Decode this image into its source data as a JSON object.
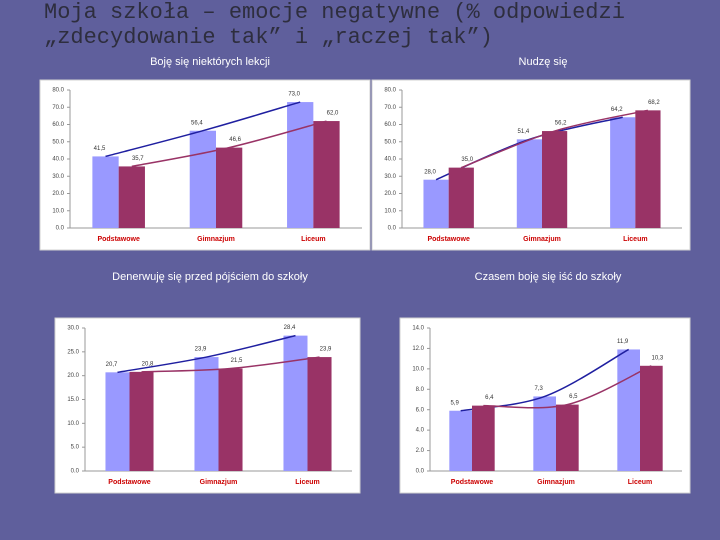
{
  "title": "Moja szkoła – emocje negatywne (% odpowiedzi „zdecydowanie tak” i „raczej tak”)",
  "chart_data": [
    {
      "type": "bar",
      "title": "Boję się niektórych lekcji",
      "categories": [
        "Podstawowe",
        "Gimnazjum",
        "Liceum"
      ],
      "series": [
        {
          "color": "#9999ff",
          "line_color": "#1f1fa0",
          "values": [
            41.5,
            56.4,
            73.0
          ],
          "value_labels": [
            "41,5",
            "56,4",
            "73,0"
          ]
        },
        {
          "color": "#993366",
          "line_color": "#993366",
          "values": [
            35.7,
            46.6,
            62.0
          ],
          "value_labels": [
            "35,7",
            "46,6",
            "62,0"
          ]
        }
      ],
      "ylim": [
        0,
        80
      ],
      "yticks": [
        {
          "value": 0,
          "label": "0.0"
        },
        {
          "value": 10,
          "label": "10.0"
        },
        {
          "value": 20,
          "label": "20.0"
        },
        {
          "value": 30,
          "label": "30.0"
        },
        {
          "value": 40,
          "label": "40.0"
        },
        {
          "value": 50,
          "label": "50.0"
        },
        {
          "value": 60,
          "label": "60.0"
        },
        {
          "value": 70,
          "label": "70.0"
        },
        {
          "value": 80,
          "label": "80.0"
        }
      ]
    },
    {
      "type": "bar",
      "title": "Nudzę się",
      "categories": [
        "Podstawowe",
        "Gimnazjum",
        "Liceum"
      ],
      "series": [
        {
          "color": "#9999ff",
          "line_color": "#1f1fa0",
          "values": [
            28.0,
            51.4,
            64.2
          ],
          "value_labels": [
            "28,0",
            "51,4",
            "64,2"
          ]
        },
        {
          "color": "#993366",
          "line_color": "#993366",
          "values": [
            35.0,
            56.2,
            68.2
          ],
          "value_labels": [
            "35,0",
            "56,2",
            "68,2"
          ]
        }
      ],
      "ylim": [
        0,
        80
      ],
      "yticks": [
        {
          "value": 0,
          "label": "0.0"
        },
        {
          "value": 10,
          "label": "10.0"
        },
        {
          "value": 20,
          "label": "20.0"
        },
        {
          "value": 30,
          "label": "30.0"
        },
        {
          "value": 40,
          "label": "40.0"
        },
        {
          "value": 50,
          "label": "50.0"
        },
        {
          "value": 60,
          "label": "60.0"
        },
        {
          "value": 70,
          "label": "70.0"
        },
        {
          "value": 80,
          "label": "80.0"
        }
      ]
    },
    {
      "type": "bar",
      "title": "Denerwuję się przed pójściem do szkoły",
      "categories": [
        "Podstawowe",
        "Gimnazjum",
        "Liceum"
      ],
      "series": [
        {
          "color": "#9999ff",
          "line_color": "#1f1fa0",
          "values": [
            20.7,
            23.9,
            28.4
          ],
          "value_labels": [
            "20,7",
            "23,9",
            "28,4"
          ]
        },
        {
          "color": "#993366",
          "line_color": "#993366",
          "values": [
            20.8,
            21.5,
            23.9
          ],
          "value_labels": [
            "20,8",
            "21,5",
            "23,9"
          ]
        }
      ],
      "ylim": [
        0,
        30
      ],
      "yticks": [
        {
          "value": 0,
          "label": "0.0"
        },
        {
          "value": 5,
          "label": "5.0"
        },
        {
          "value": 10,
          "label": "10.0"
        },
        {
          "value": 15,
          "label": "15.0"
        },
        {
          "value": 20,
          "label": "20.0"
        },
        {
          "value": 25,
          "label": "25.0"
        },
        {
          "value": 30,
          "label": "30.0"
        }
      ]
    },
    {
      "type": "bar",
      "title": "Czasem boję się iść do szkoły",
      "categories": [
        "Podstawowe",
        "Gimnazjum",
        "Liceum"
      ],
      "series": [
        {
          "color": "#9999ff",
          "line_color": "#1f1fa0",
          "values": [
            5.9,
            7.3,
            11.9
          ],
          "value_labels": [
            "5,9",
            "7,3",
            "11,9"
          ]
        },
        {
          "color": "#993366",
          "line_color": "#993366",
          "values": [
            6.4,
            6.5,
            10.3
          ],
          "value_labels": [
            "6,4",
            "6,5",
            "10,3"
          ]
        }
      ],
      "ylim": [
        0,
        14
      ],
      "yticks": [
        {
          "value": 0,
          "label": "0.0"
        },
        {
          "value": 2,
          "label": "2.0"
        },
        {
          "value": 4,
          "label": "4.0"
        },
        {
          "value": 6,
          "label": "6.0"
        },
        {
          "value": 8,
          "label": "8.0"
        },
        {
          "value": 10,
          "label": "10.0"
        },
        {
          "value": 12,
          "label": "12.0"
        },
        {
          "value": 14,
          "label": "14.0"
        }
      ]
    }
  ]
}
